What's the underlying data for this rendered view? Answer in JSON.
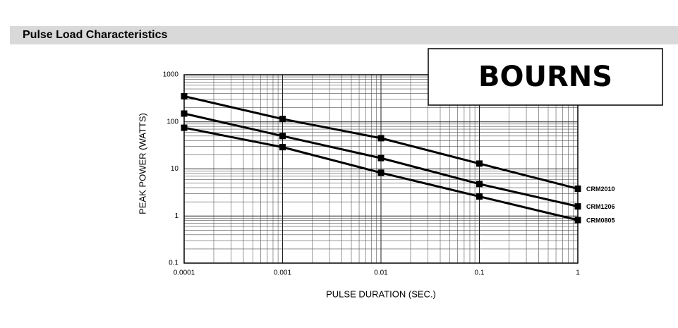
{
  "chart_data": {
    "type": "line",
    "title": "Pulse Load Characteristics",
    "x_label": "PULSE DURATION (SEC.)",
    "y_label": "PEAK POWER (WATTS)",
    "x": [
      0.0001,
      0.001,
      0.01,
      0.1,
      1
    ],
    "series": [
      {
        "name": "CRM2010",
        "color": "#000000",
        "values": [
          350,
          115,
          45,
          13,
          3.8
        ]
      },
      {
        "name": "CRM1206",
        "color": "#000000",
        "values": [
          150,
          50,
          17,
          4.8,
          1.6
        ]
      },
      {
        "name": "CRM0805",
        "color": "#000000",
        "values": [
          75,
          29,
          8.3,
          2.6,
          0.82
        ]
      }
    ],
    "xlim": [
      0.0001,
      1
    ],
    "ylim": [
      0.1,
      1000
    ],
    "xticks": [
      0.0001,
      0.001,
      0.01,
      0.1,
      1
    ],
    "yticks": [
      0.1,
      1,
      10,
      100,
      1000
    ],
    "log_x": true,
    "log_y": true,
    "grid": true,
    "minor_grid": true,
    "legend": "line-end"
  },
  "logo": "BOURNS"
}
